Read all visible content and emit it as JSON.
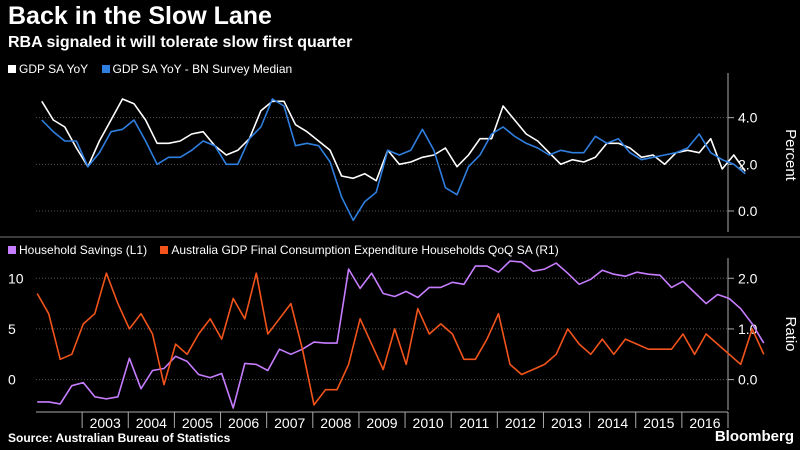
{
  "title": "Back in the Slow Lane",
  "subtitle": "RBA signaled it will tolerate slow first quarter",
  "source": "Source: Australian Bureau of Statistics",
  "brand": "Bloomberg",
  "colors": {
    "white": "#ffffff",
    "blue": "#2f7fe0",
    "purple": "#c77dff",
    "orange": "#f2541b"
  },
  "chart_data": [
    {
      "type": "line",
      "x_start": "2002Q1",
      "x_end": "2017Q1",
      "xlabels": [
        "2003",
        "2004",
        "2005",
        "2006",
        "2007",
        "2008",
        "2009",
        "2010",
        "2011",
        "2012",
        "2013",
        "2014",
        "2015",
        "2016"
      ],
      "ylabel": "Percent",
      "yticks": [
        "0.0",
        "2.0",
        "4.0"
      ],
      "ylim": [
        -0.9,
        5.7
      ],
      "grid": true,
      "legend": "top-left",
      "series": [
        {
          "name": "GDP SA YoY",
          "color": "#ffffff",
          "values": [
            4.7,
            3.9,
            3.6,
            2.7,
            1.9,
            3.0,
            3.9,
            4.8,
            4.6,
            3.9,
            2.9,
            2.9,
            3.0,
            3.3,
            3.4,
            2.8,
            2.4,
            2.6,
            3.1,
            4.3,
            4.7,
            4.7,
            3.7,
            3.4,
            3.0,
            2.6,
            1.5,
            1.4,
            1.6,
            1.3,
            2.6,
            2.0,
            2.1,
            2.3,
            2.4,
            2.7,
            1.9,
            2.4,
            3.1,
            3.1,
            4.5,
            3.9,
            3.3,
            3.0,
            2.5,
            2.0,
            2.2,
            2.1,
            2.3,
            2.9,
            2.9,
            2.7,
            2.3,
            2.4,
            2.0,
            2.5,
            2.6,
            2.5,
            3.1,
            1.8,
            2.4,
            1.7
          ]
        },
        {
          "name": "GDP SA YoY - BN Survey Median",
          "color": "#2f7fe0",
          "values": [
            3.9,
            3.4,
            3.0,
            3.0,
            1.9,
            2.5,
            3.4,
            3.5,
            3.9,
            3.0,
            2.0,
            2.3,
            2.3,
            2.6,
            3.0,
            2.8,
            2.0,
            2.0,
            3.1,
            3.6,
            4.8,
            4.5,
            2.8,
            2.9,
            2.8,
            2.1,
            0.6,
            -0.4,
            0.4,
            0.8,
            2.6,
            2.4,
            2.6,
            3.5,
            2.6,
            1.0,
            0.7,
            1.9,
            2.4,
            3.3,
            3.6,
            3.2,
            2.9,
            2.7,
            2.4,
            2.6,
            2.5,
            2.5,
            3.2,
            2.9,
            3.1,
            2.5,
            2.2,
            2.3,
            2.4,
            2.5,
            2.7,
            3.3,
            2.5,
            2.2,
            2.0,
            1.6
          ]
        }
      ]
    },
    {
      "type": "line",
      "x_start": "2002Q1",
      "x_end": "2017Q1",
      "xlabels": [
        "2003",
        "2004",
        "2005",
        "2006",
        "2007",
        "2008",
        "2009",
        "2010",
        "2011",
        "2012",
        "2013",
        "2014",
        "2015",
        "2016"
      ],
      "ylabel": "Ratio",
      "yticks_left": [
        "0",
        "5",
        "10"
      ],
      "yticks_right": [
        "0.0",
        "1.0",
        "2.0"
      ],
      "ylim_left": [
        -3.0,
        12.0
      ],
      "ylim_right": [
        -0.6,
        2.4
      ],
      "grid": true,
      "legend": "top-left",
      "series": [
        {
          "name": "Household Savings (L1)",
          "axis": "left",
          "color": "#c77dff",
          "values": [
            -2.2,
            -2.2,
            -2.4,
            -0.6,
            -0.3,
            -1.7,
            -1.9,
            -1.7,
            2.1,
            -0.9,
            0.9,
            1.1,
            2.3,
            1.8,
            0.5,
            0.2,
            0.6,
            -2.8,
            1.6,
            1.5,
            0.9,
            3.0,
            2.5,
            3.0,
            3.7,
            3.6,
            3.6,
            10.9,
            9.0,
            10.5,
            8.5,
            8.2,
            8.7,
            8.1,
            9.1,
            9.1,
            9.6,
            9.4,
            11.2,
            11.2,
            10.6,
            11.7,
            11.6,
            10.7,
            10.9,
            11.5,
            10.5,
            9.4,
            9.9,
            10.8,
            10.4,
            10.2,
            10.6,
            10.4,
            10.3,
            9.1,
            9.7,
            8.6,
            7.5,
            8.4,
            8.0,
            7.0,
            5.5,
            3.6
          ]
        },
        {
          "name": "Australia GDP Final Consumption Expenditure Households QoQ SA (R1)",
          "axis": "right",
          "color": "#f2541b",
          "values": [
            1.7,
            1.3,
            0.4,
            0.5,
            1.1,
            1.3,
            2.1,
            1.5,
            1.0,
            1.3,
            0.9,
            -0.1,
            0.7,
            0.5,
            0.9,
            1.2,
            0.8,
            1.6,
            1.2,
            2.1,
            0.9,
            1.2,
            1.5,
            0.6,
            -0.5,
            -0.2,
            -0.2,
            0.3,
            1.2,
            0.7,
            0.2,
            1.0,
            0.3,
            1.4,
            0.9,
            1.1,
            0.9,
            0.4,
            0.4,
            0.8,
            1.3,
            0.3,
            0.1,
            0.2,
            0.3,
            0.5,
            1.0,
            0.7,
            0.5,
            0.8,
            0.5,
            0.8,
            0.7,
            0.6,
            0.6,
            0.6,
            0.9,
            0.5,
            0.9,
            0.7,
            0.5,
            0.3,
            1.0,
            0.5
          ]
        }
      ]
    }
  ]
}
